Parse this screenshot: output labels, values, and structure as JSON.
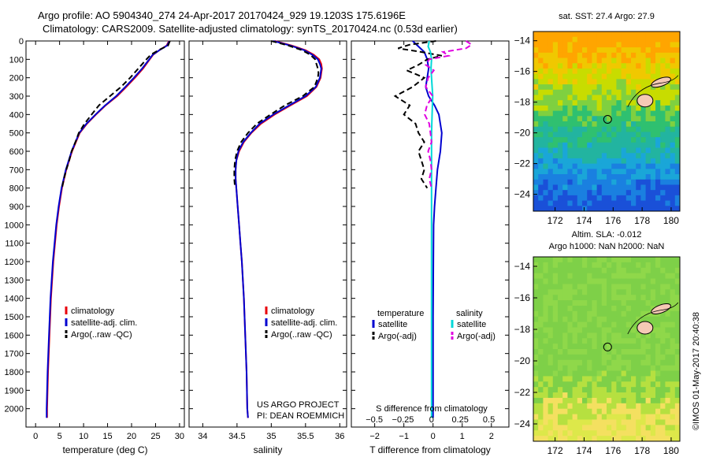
{
  "header": {
    "line1": "Argo profile: AO 5904340_274 24-Apr-2017 20170424_929 19.1203S 175.6196E",
    "line2": "Climatology: CARS2009. Satellite-adjusted climatology: synTS_20170424.nc (0.53d earlier)"
  },
  "credit": "©IMOS 01-May-2017 20:40:38",
  "colors": {
    "climatology": "#e8000b",
    "satellite": "#0000d0",
    "argo": "#000000",
    "salinity_sat": "#00d8d8",
    "salinity_argo": "#e000e0"
  },
  "chart_data": [
    {
      "type": "line",
      "xlabel": "temperature (deg C)",
      "ylabel": "",
      "xlim": [
        -2,
        31
      ],
      "ylim": [
        2100,
        0
      ],
      "xticks": [
        0,
        5,
        10,
        15,
        20,
        25,
        30
      ],
      "yticks": [
        0,
        100,
        200,
        300,
        400,
        500,
        600,
        700,
        800,
        900,
        1000,
        1100,
        1200,
        1300,
        1400,
        1500,
        1600,
        1700,
        1800,
        1900,
        2000
      ],
      "legend": {
        "placement": "bottom-center",
        "entries": [
          "climatology",
          "satellite-adj. clim.",
          "Argo(..raw -QC)"
        ]
      },
      "series": [
        {
          "name": "climatology",
          "depth": [
            0,
            25,
            50,
            75,
            100,
            150,
            200,
            250,
            300,
            350,
            400,
            450,
            500,
            600,
            700,
            800,
            900,
            1000,
            1200,
            1400,
            1600,
            1800,
            2000,
            2050
          ],
          "values": [
            27.8,
            27.3,
            25.8,
            24.5,
            23.8,
            22.4,
            20.7,
            18.9,
            17.0,
            14.6,
            12.6,
            10.7,
            9.2,
            7.6,
            6.4,
            5.5,
            4.9,
            4.4,
            3.7,
            3.2,
            2.9,
            2.6,
            2.4,
            2.4
          ]
        },
        {
          "name": "satellite-adj. clim.",
          "depth": [
            0,
            25,
            50,
            75,
            100,
            150,
            200,
            250,
            300,
            350,
            400,
            450,
            500,
            600,
            700,
            800,
            900,
            1000,
            1200,
            1400,
            1600,
            1800,
            2000,
            2050
          ],
          "values": [
            27.9,
            27.4,
            25.8,
            24.4,
            23.7,
            22.2,
            20.5,
            18.7,
            16.8,
            14.5,
            12.5,
            10.6,
            9.1,
            7.5,
            6.3,
            5.4,
            4.8,
            4.3,
            3.6,
            3.1,
            2.8,
            2.5,
            2.3,
            2.3
          ]
        },
        {
          "name": "Argo(..raw -QC)",
          "depth": [
            0,
            25,
            50,
            75,
            100,
            150,
            200,
            250,
            300,
            350,
            400,
            450,
            500,
            550,
            600,
            650,
            700,
            750,
            800
          ],
          "values": [
            28.0,
            27.6,
            25.6,
            24.0,
            23.1,
            21.4,
            19.7,
            17.8,
            15.5,
            13.2,
            11.7,
            10.2,
            9.0,
            8.3,
            7.5,
            7.0,
            6.4,
            5.9,
            5.5
          ]
        }
      ]
    },
    {
      "type": "line",
      "xlabel": "salinity",
      "ylabel": "",
      "xlim": [
        33.8,
        36.1
      ],
      "ylim": [
        2100,
        0
      ],
      "xticks": [
        34,
        34.5,
        35,
        35.5,
        36
      ],
      "legend": {
        "placement": "bottom-center",
        "entries": [
          "climatology",
          "satellite-adj. clim.",
          "Argo(..raw -QC)"
        ]
      },
      "annotation": [
        "US ARGO PROJECT",
        "PI: DEAN ROEMMICH"
      ],
      "series": [
        {
          "name": "climatology",
          "depth": [
            0,
            25,
            50,
            75,
            100,
            125,
            150,
            175,
            200,
            250,
            300,
            350,
            400,
            450,
            500,
            550,
            600,
            650,
            700,
            750,
            800,
            900,
            1000,
            1100,
            1200,
            1400,
            1600,
            1800,
            2000,
            2050
          ],
          "values": [
            35.05,
            35.3,
            35.5,
            35.62,
            35.7,
            35.73,
            35.74,
            35.73,
            35.72,
            35.66,
            35.52,
            35.28,
            35.05,
            34.85,
            34.71,
            34.6,
            34.53,
            34.49,
            34.48,
            34.48,
            34.49,
            34.51,
            34.53,
            34.55,
            34.57,
            34.6,
            34.62,
            34.64,
            34.65,
            34.66
          ]
        },
        {
          "name": "satellite-adj. clim.",
          "depth": [
            0,
            25,
            50,
            75,
            100,
            125,
            150,
            175,
            200,
            250,
            300,
            350,
            400,
            450,
            500,
            550,
            600,
            650,
            700,
            750,
            800,
            900,
            1000,
            1100,
            1200,
            1400,
            1600,
            1800,
            2000,
            2050
          ],
          "values": [
            35.03,
            35.28,
            35.48,
            35.6,
            35.68,
            35.71,
            35.73,
            35.72,
            35.71,
            35.65,
            35.5,
            35.26,
            35.03,
            34.83,
            34.7,
            34.59,
            34.52,
            34.49,
            34.48,
            34.48,
            34.49,
            34.51,
            34.53,
            34.55,
            34.57,
            34.6,
            34.62,
            34.64,
            34.65,
            34.66
          ]
        },
        {
          "name": "Argo(..raw -QC)",
          "depth": [
            0,
            25,
            50,
            75,
            100,
            125,
            150,
            175,
            200,
            250,
            300,
            350,
            400,
            450,
            500,
            550,
            600,
            650,
            700,
            750,
            800
          ],
          "values": [
            35.0,
            35.25,
            35.45,
            35.57,
            35.64,
            35.66,
            35.68,
            35.69,
            35.68,
            35.63,
            35.46,
            35.2,
            34.99,
            34.79,
            34.66,
            34.56,
            34.5,
            34.47,
            34.46,
            34.46,
            34.47
          ]
        }
      ]
    },
    {
      "type": "line",
      "xlabel": "T difference from climatology",
      "x2label": "S difference from climatology",
      "ylabel": "",
      "xlim": [
        -2.8,
        2.6
      ],
      "ylim": [
        2100,
        0
      ],
      "xticks": [
        -2,
        -1,
        0,
        1,
        2
      ],
      "x2ticks": [
        -0.5,
        -0.25,
        0,
        0.25,
        0.5
      ],
      "legend": {
        "placement": "bottom",
        "columns": [
          {
            "heading": "temperature",
            "entries": [
              "satellite",
              "Argo(-adj)"
            ]
          },
          {
            "heading": "salinity",
            "entries": [
              "satellite",
              "Argo(-adj)"
            ]
          }
        ]
      },
      "series": [
        {
          "name": "temperature satellite",
          "depth": [
            0,
            30,
            60,
            100,
            150,
            200,
            250,
            300,
            350,
            400,
            500,
            600,
            700,
            800,
            900,
            1000,
            1200,
            1500,
            2000,
            2050
          ],
          "values": [
            -0.7,
            -0.5,
            -0.3,
            -0.2,
            -0.15,
            -0.2,
            -0.25,
            -0.15,
            0.05,
            0.2,
            0.3,
            0.25,
            0.15,
            0.1,
            0.05,
            0.02,
            0.01,
            0,
            0,
            0
          ]
        },
        {
          "name": "temperature Argo(-adj)",
          "depth": [
            0,
            20,
            40,
            60,
            80,
            100,
            130,
            160,
            200,
            250,
            300,
            350,
            400,
            450,
            500,
            550,
            600,
            650,
            700,
            750,
            800
          ],
          "values": [
            0.1,
            -0.8,
            -1.2,
            -0.4,
            0.3,
            -0.2,
            -0.5,
            -0.9,
            -0.3,
            -0.7,
            -1.3,
            -0.8,
            -1.0,
            -0.6,
            -0.5,
            -0.3,
            -0.5,
            -0.4,
            -0.3,
            -0.4,
            -0.2
          ]
        },
        {
          "name": "salinity satellite",
          "depth": [
            0,
            30,
            60,
            100,
            150,
            200,
            300,
            400,
            500,
            600,
            800,
            1000,
            1500,
            2000,
            2050
          ],
          "values": [
            -0.02,
            -0.03,
            -0.01,
            0.0,
            -0.005,
            0.0,
            0.01,
            0.005,
            0.0,
            0.0,
            0,
            0,
            0,
            0,
            0
          ]
        },
        {
          "name": "salinity Argo(-adj)",
          "depth": [
            0,
            20,
            40,
            60,
            80,
            100,
            130,
            160,
            200,
            250,
            300,
            350,
            400,
            450,
            500,
            550,
            600,
            650,
            700,
            750,
            800
          ],
          "values": [
            0.3,
            0.35,
            0.3,
            0.1,
            0.15,
            -0.02,
            -0.05,
            0.02,
            -0.03,
            -0.05,
            0.01,
            -0.04,
            -0.06,
            -0.02,
            -0.01,
            0.0,
            -0.03,
            -0.01,
            0.0,
            -0.02,
            0.0
          ]
        }
      ]
    },
    {
      "type": "heatmap",
      "title": "sat. SST: 27.4 Argo: 27.9",
      "xlabel": "",
      "ylabel": "",
      "xlim": [
        170.5,
        180.6
      ],
      "ylim": [
        -25.1,
        -13.4
      ],
      "xticks": [
        172,
        174,
        176,
        178,
        180
      ],
      "yticks": [
        -14,
        -16,
        -18,
        -20,
        -22,
        -24
      ],
      "marker": {
        "lon": 175.6196,
        "lat": -19.1203
      },
      "description": "SST field: warmer (orange/yellow) in the north, cooling to blue in the south"
    },
    {
      "type": "heatmap",
      "title": [
        "Altim. SLA: -0.012",
        "Argo h1000: NaN h2000: NaN"
      ],
      "xlabel": "",
      "ylabel": "",
      "xlim": [
        170.5,
        180.6
      ],
      "ylim": [
        -25.1,
        -13.4
      ],
      "xticks": [
        172,
        174,
        176,
        178,
        180
      ],
      "yticks": [
        -14,
        -16,
        -18,
        -20,
        -22,
        -24
      ],
      "marker": {
        "lon": 175.6196,
        "lat": -19.1203
      }
    }
  ]
}
